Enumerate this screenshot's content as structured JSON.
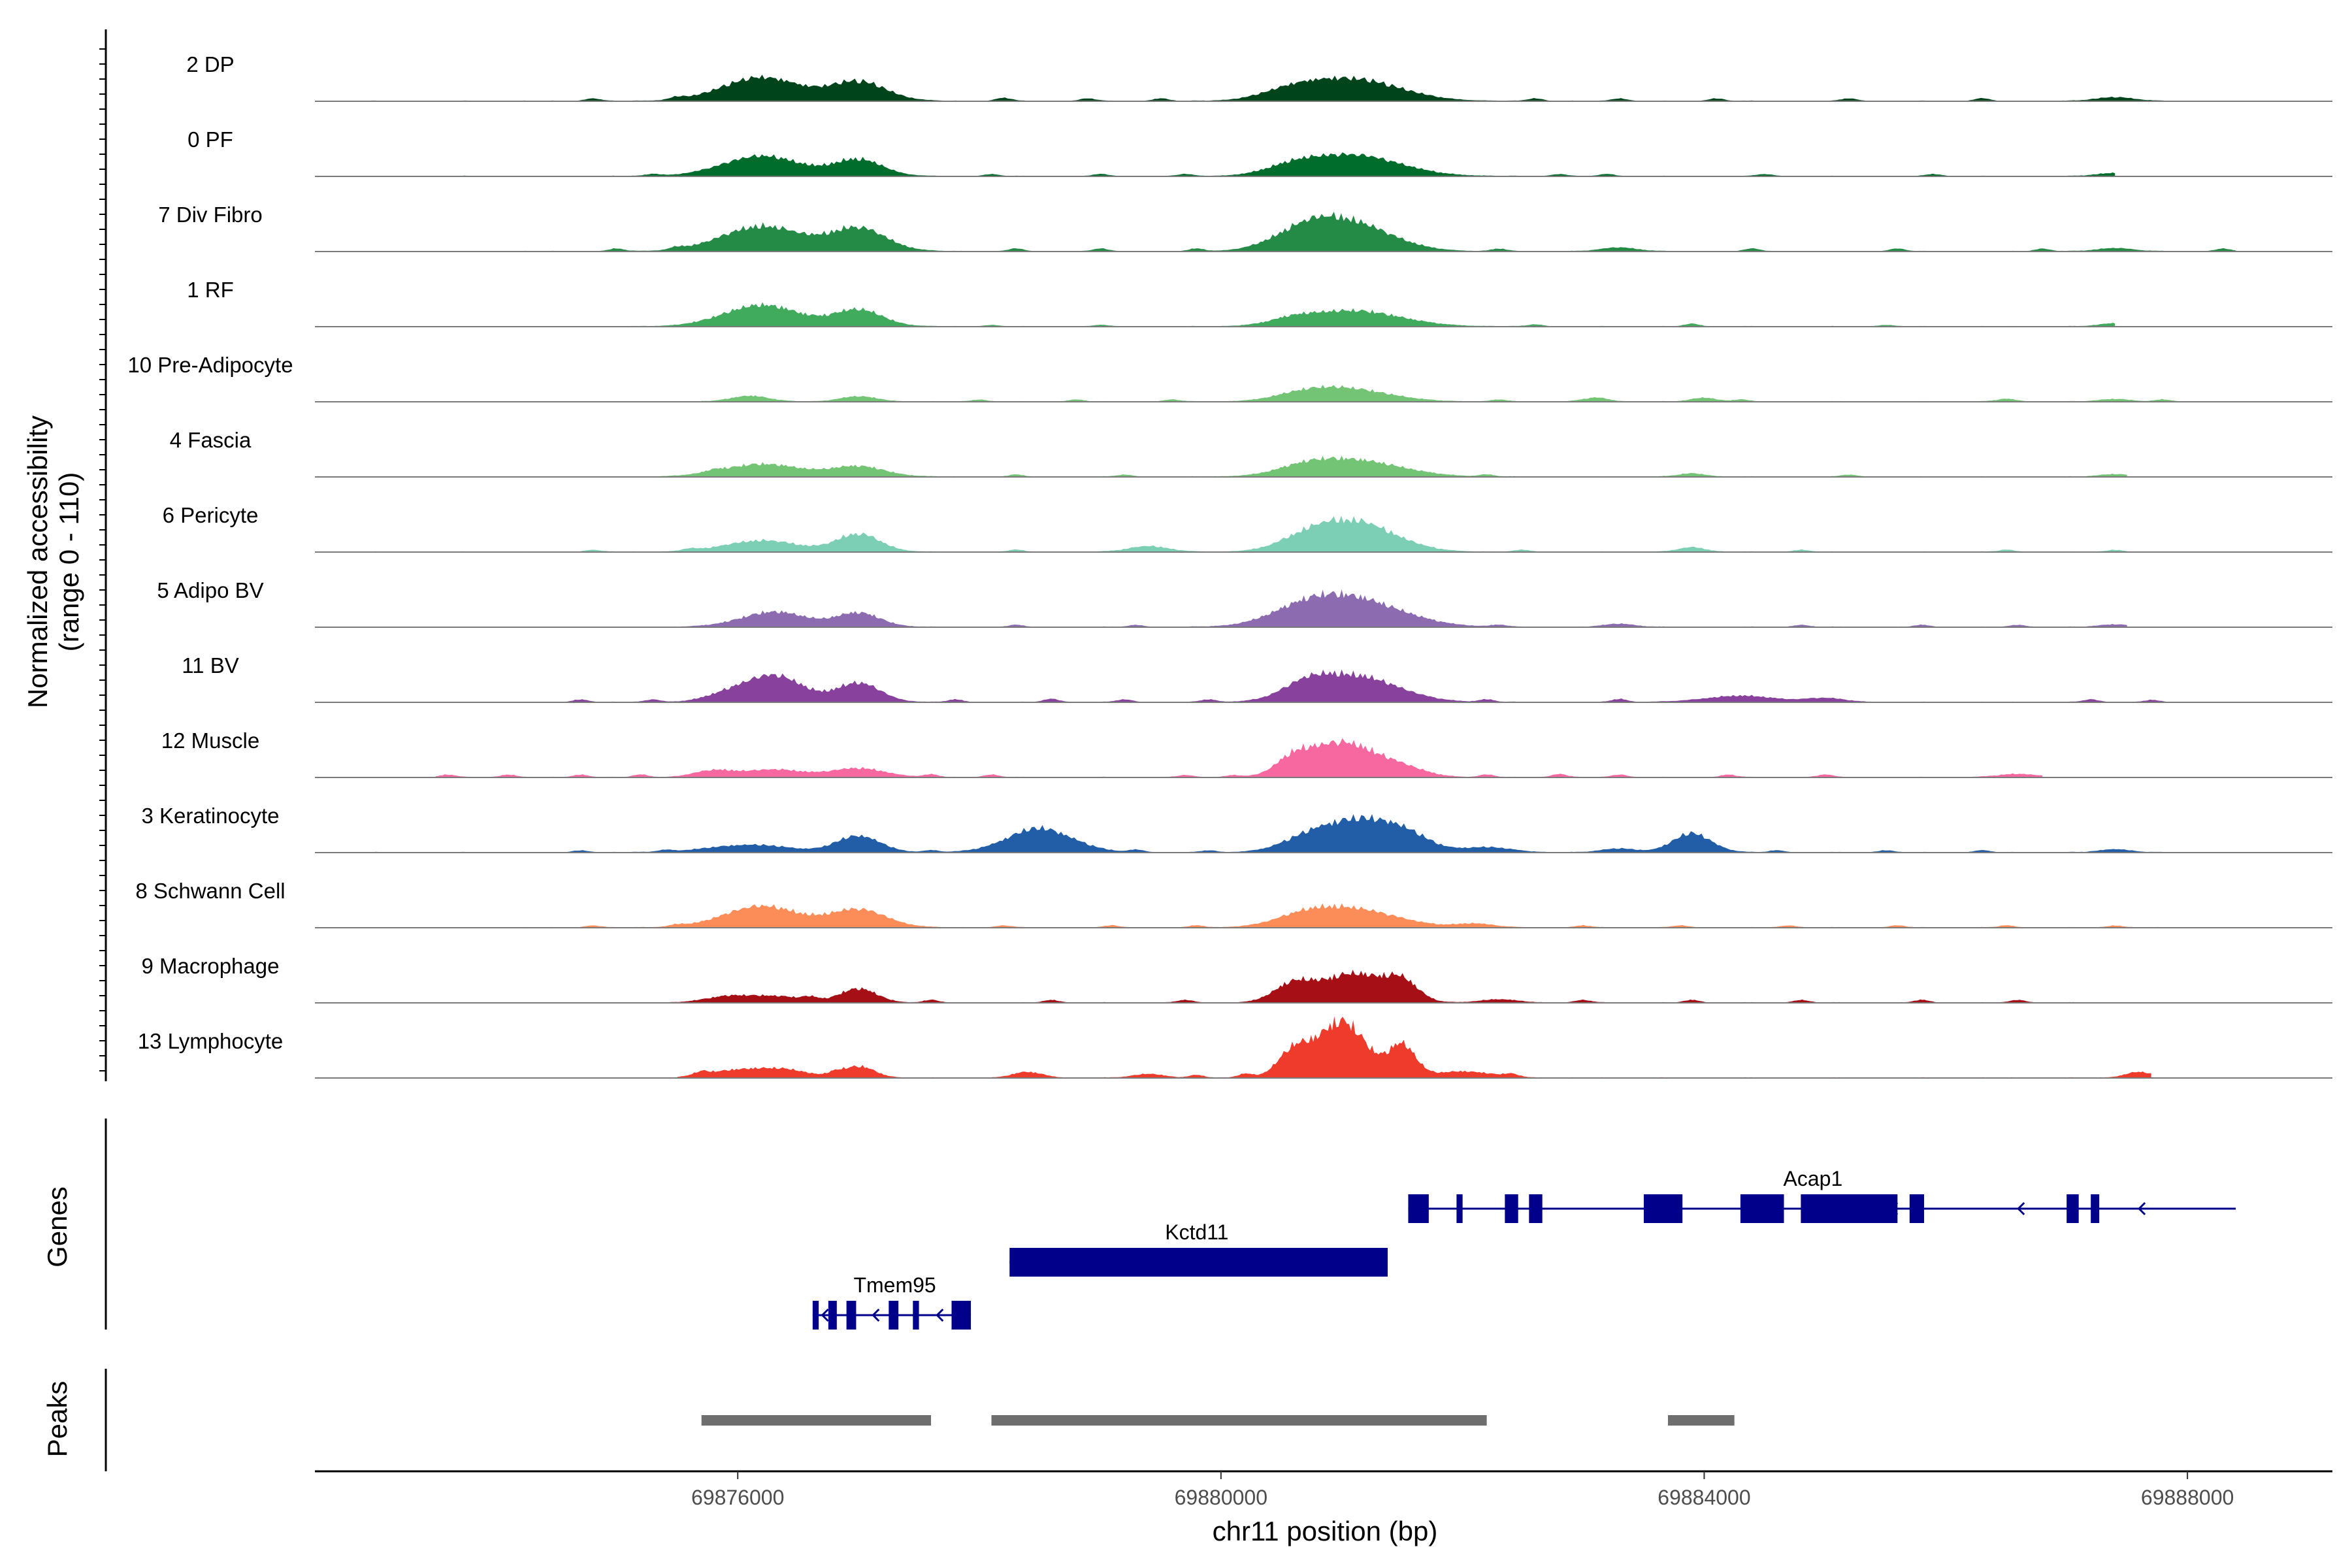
{
  "chart_data": {
    "type": "area",
    "title": "",
    "chromosome": "chr11",
    "xlabel": "chr11 position (bp)",
    "ylabel_line1": "Normalized accessibility",
    "ylabel_line2": "(range 0 - 110)",
    "y_range": [
      0,
      110
    ],
    "xlim": [
      69872500,
      69889200
    ],
    "x_ticks": [
      69876000,
      69880000,
      69884000,
      69888000
    ],
    "x_tick_labels": [
      "69876000",
      "69880000",
      "69884000",
      "69888000"
    ],
    "genes_label": "Genes",
    "peaks_label": "Peaks",
    "tracks": [
      {
        "name": "2 DP",
        "color": "#00441b",
        "start": 69872500,
        "end": 69888300,
        "peaks": [
          [
            69876200,
            38,
            320
          ],
          [
            69877000,
            30,
            230
          ],
          [
            69880600,
            14,
            250
          ],
          [
            69881100,
            34,
            380
          ],
          [
            69887400,
            6,
            150
          ]
        ],
        "minor": [
          [
            69874800,
            4
          ],
          [
            69875500,
            4
          ],
          [
            69878200,
            5
          ],
          [
            69878900,
            4
          ],
          [
            69879500,
            4
          ],
          [
            69882600,
            4
          ],
          [
            69883300,
            4
          ],
          [
            69884100,
            4
          ],
          [
            69885200,
            4
          ],
          [
            69886300,
            4
          ]
        ]
      },
      {
        "name": "0 PF",
        "color": "#006d2c",
        "start": 69873500,
        "end": 69887400,
        "peaks": [
          [
            69876200,
            32,
            320
          ],
          [
            69877000,
            26,
            200
          ],
          [
            69880600,
            12,
            220
          ],
          [
            69881100,
            33,
            380
          ],
          [
            69887400,
            5,
            140
          ]
        ],
        "minor": [
          [
            69875300,
            3
          ],
          [
            69878100,
            3
          ],
          [
            69879000,
            3
          ],
          [
            69879700,
            3
          ],
          [
            69882800,
            3
          ],
          [
            69883200,
            3
          ],
          [
            69884500,
            3
          ],
          [
            69885900,
            3
          ]
        ]
      },
      {
        "name": "7 Div Fibro",
        "color": "#238b45",
        "start": 69874200,
        "end": 69888400,
        "peaks": [
          [
            69876200,
            40,
            330
          ],
          [
            69877000,
            36,
            230
          ],
          [
            69880700,
            30,
            270
          ],
          [
            69881100,
            40,
            330
          ],
          [
            69883300,
            6,
            140
          ],
          [
            69887400,
            5,
            140
          ]
        ],
        "minor": [
          [
            69875000,
            4
          ],
          [
            69875500,
            4
          ],
          [
            69878300,
            4
          ],
          [
            69879000,
            4
          ],
          [
            69879800,
            4
          ],
          [
            69882300,
            4
          ],
          [
            69884400,
            4
          ],
          [
            69885600,
            4
          ],
          [
            69886800,
            4
          ],
          [
            69888300,
            4
          ]
        ]
      },
      {
        "name": "1 RF",
        "color": "#41ab5d",
        "start": 69875000,
        "end": 69887400,
        "peaks": [
          [
            69876200,
            34,
            310
          ],
          [
            69877000,
            26,
            200
          ],
          [
            69880600,
            8,
            180
          ],
          [
            69881100,
            25,
            380
          ],
          [
            69887400,
            5,
            120
          ]
        ],
        "minor": [
          [
            69878100,
            2
          ],
          [
            69879000,
            2
          ],
          [
            69882600,
            3
          ],
          [
            69883900,
            4
          ],
          [
            69885500,
            2
          ]
        ]
      },
      {
        "name": "10 Pre-Adipocyte",
        "color": "#74c476",
        "start": 69875700,
        "end": 69888200,
        "peaks": [
          [
            69876100,
            9,
            150
          ],
          [
            69877000,
            8,
            150
          ],
          [
            69880700,
            12,
            240
          ],
          [
            69881100,
            18,
            320
          ],
          [
            69883100,
            6,
            100
          ],
          [
            69884000,
            6,
            100
          ],
          [
            69886500,
            4,
            80
          ],
          [
            69887400,
            4,
            120
          ]
        ],
        "minor": [
          [
            69878000,
            3
          ],
          [
            69878800,
            3
          ],
          [
            69879600,
            3
          ],
          [
            69882300,
            3
          ],
          [
            69884300,
            3
          ],
          [
            69887800,
            3
          ]
        ]
      },
      {
        "name": "4 Fascia",
        "color": "#74c476",
        "start": 69875300,
        "end": 69887500,
        "peaks": [
          [
            69876200,
            20,
            320
          ],
          [
            69877000,
            16,
            220
          ],
          [
            69880700,
            10,
            220
          ],
          [
            69881100,
            26,
            380
          ],
          [
            69883900,
            5,
            110
          ],
          [
            69887400,
            4,
            120
          ]
        ],
        "minor": [
          [
            69875800,
            3
          ],
          [
            69878300,
            3
          ],
          [
            69879200,
            3
          ],
          [
            69882200,
            3
          ],
          [
            69885200,
            3
          ]
        ]
      },
      {
        "name": "6 Pericyte",
        "color": "#7ccfb4",
        "start": 69873000,
        "end": 69887500,
        "peaks": [
          [
            69876200,
            18,
            300
          ],
          [
            69877000,
            28,
            180
          ],
          [
            69879400,
            9,
            160
          ],
          [
            69880700,
            14,
            220
          ],
          [
            69881100,
            48,
            330
          ],
          [
            69883900,
            7,
            110
          ]
        ],
        "minor": [
          [
            69874800,
            3
          ],
          [
            69875600,
            3
          ],
          [
            69878300,
            3
          ],
          [
            69882500,
            3
          ],
          [
            69884800,
            3
          ],
          [
            69886500,
            3
          ],
          [
            69887400,
            3
          ]
        ]
      },
      {
        "name": "5 Adipo BV",
        "color": "#8c6bb1",
        "start": 69875300,
        "end": 69887500,
        "peaks": [
          [
            69876300,
            24,
            270
          ],
          [
            69877000,
            22,
            180
          ],
          [
            69880700,
            20,
            290
          ],
          [
            69881100,
            42,
            400
          ],
          [
            69883300,
            5,
            120
          ],
          [
            69887400,
            4,
            120
          ]
        ],
        "minor": [
          [
            69878300,
            3
          ],
          [
            69879300,
            3
          ],
          [
            69882300,
            3
          ],
          [
            69884800,
            3
          ],
          [
            69885800,
            3
          ],
          [
            69886600,
            3
          ]
        ]
      },
      {
        "name": "11 BV",
        "color": "#88419d",
        "start": 69874500,
        "end": 69888000,
        "peaks": [
          [
            69875900,
            10,
            180
          ],
          [
            69876300,
            42,
            240
          ],
          [
            69877000,
            30,
            180
          ],
          [
            69880700,
            18,
            190
          ],
          [
            69881100,
            42,
            350
          ],
          [
            69884300,
            10,
            280
          ],
          [
            69885000,
            6,
            160
          ]
        ],
        "minor": [
          [
            69874700,
            4
          ],
          [
            69875300,
            4
          ],
          [
            69877800,
            4
          ],
          [
            69878600,
            5
          ],
          [
            69879200,
            4
          ],
          [
            69879900,
            4
          ],
          [
            69882200,
            4
          ],
          [
            69883300,
            5
          ],
          [
            69887200,
            4
          ],
          [
            69887700,
            3
          ]
        ]
      },
      {
        "name": "12 Muscle",
        "color": "#f768a1",
        "start": 69873500,
        "end": 69886800,
        "peaks": [
          [
            69875800,
            10,
            160
          ],
          [
            69876300,
            12,
            250
          ],
          [
            69877000,
            14,
            220
          ],
          [
            69880600,
            22,
            140
          ],
          [
            69881000,
            55,
            280
          ],
          [
            69881500,
            12,
            200
          ],
          [
            69886600,
            5,
            160
          ]
        ],
        "minor": [
          [
            69873600,
            4
          ],
          [
            69874100,
            4
          ],
          [
            69874700,
            4
          ],
          [
            69875200,
            4
          ],
          [
            69877600,
            4
          ],
          [
            69878100,
            4
          ],
          [
            69879700,
            3
          ],
          [
            69880100,
            3
          ],
          [
            69882200,
            4
          ],
          [
            69882800,
            5
          ],
          [
            69883300,
            4
          ],
          [
            69884200,
            4
          ],
          [
            69885000,
            4
          ]
        ]
      },
      {
        "name": "3 Keratinocyte",
        "color": "#225ea8",
        "start": 69873000,
        "end": 69888400,
        "peaks": [
          [
            69876100,
            12,
            330
          ],
          [
            69877000,
            26,
            180
          ],
          [
            69878500,
            38,
            270
          ],
          [
            69880700,
            14,
            220
          ],
          [
            69881100,
            46,
            300
          ],
          [
            69881500,
            24,
            220
          ],
          [
            69883900,
            30,
            160
          ],
          [
            69882200,
            8,
            200
          ],
          [
            69883300,
            6,
            140
          ],
          [
            69887400,
            5,
            120
          ]
        ],
        "minor": [
          [
            69874700,
            3
          ],
          [
            69875400,
            3
          ],
          [
            69877600,
            3
          ],
          [
            69879300,
            4
          ],
          [
            69879900,
            3
          ],
          [
            69884600,
            3
          ],
          [
            69885500,
            3
          ],
          [
            69886300,
            3
          ]
        ]
      },
      {
        "name": "8 Schwann Cell",
        "color": "#fc8d59",
        "start": 69874000,
        "end": 69888000,
        "peaks": [
          [
            69876200,
            34,
            310
          ],
          [
            69877000,
            28,
            230
          ],
          [
            69880700,
            14,
            240
          ],
          [
            69881100,
            28,
            360
          ],
          [
            69882100,
            6,
            150
          ]
        ],
        "minor": [
          [
            69874800,
            3
          ],
          [
            69875500,
            3
          ],
          [
            69878200,
            3
          ],
          [
            69879100,
            3
          ],
          [
            69879800,
            3
          ],
          [
            69883000,
            3
          ],
          [
            69883800,
            3
          ],
          [
            69884700,
            3
          ],
          [
            69885600,
            3
          ],
          [
            69886500,
            3
          ],
          [
            69887400,
            3
          ]
        ]
      },
      {
        "name": "9 Macrophage",
        "color": "#a50f15",
        "start": 69875400,
        "end": 69887400,
        "peaks": [
          [
            69875900,
            8,
            180
          ],
          [
            69876300,
            10,
            250
          ],
          [
            69877000,
            22,
            150
          ],
          [
            69880600,
            28,
            160
          ],
          [
            69881100,
            46,
            260
          ],
          [
            69881500,
            28,
            130
          ],
          [
            69882300,
            5,
            150
          ]
        ],
        "minor": [
          [
            69876600,
            5
          ],
          [
            69877600,
            4
          ],
          [
            69878600,
            4
          ],
          [
            69879700,
            4
          ],
          [
            69883000,
            4
          ],
          [
            69883900,
            4
          ],
          [
            69884800,
            4
          ],
          [
            69885800,
            4
          ],
          [
            69886600,
            4
          ]
        ]
      },
      {
        "name": "13 Lymphocyte",
        "color": "#ef3b2c",
        "start": 69875500,
        "end": 69887700,
        "peaks": [
          [
            69876000,
            12,
            240
          ],
          [
            69876400,
            11,
            200
          ],
          [
            69877000,
            18,
            130
          ],
          [
            69878400,
            9,
            120
          ],
          [
            69879400,
            6,
            120
          ],
          [
            69880600,
            40,
            130
          ],
          [
            69881000,
            90,
            200
          ],
          [
            69881500,
            50,
            110
          ],
          [
            69882000,
            10,
            240
          ],
          [
            69887600,
            9,
            110
          ]
        ],
        "minor": [
          [
            69875700,
            5
          ],
          [
            69876800,
            5
          ],
          [
            69879800,
            4
          ],
          [
            69880200,
            6
          ],
          [
            69882400,
            4
          ]
        ]
      }
    ],
    "genes": [
      {
        "name": "Acap1",
        "row": 0,
        "strand": "-",
        "start": 69881550,
        "end": 69888400,
        "label_pos": 69884900,
        "exons": [
          [
            69881550,
            69881720
          ],
          [
            69881950,
            69882000
          ],
          [
            69882350,
            69882460
          ],
          [
            69882550,
            69882660
          ],
          [
            69883500,
            69883820
          ],
          [
            69884300,
            69884660
          ],
          [
            69884800,
            69885600
          ],
          [
            69885700,
            69885820
          ],
          [
            69887000,
            69887100
          ],
          [
            69887200,
            69887270
          ]
        ],
        "arrows": [
          69885550,
          69886600,
          69887600
        ]
      },
      {
        "name": "Kctd11",
        "row": 1,
        "strand": "+",
        "start": 69878250,
        "end": 69881380,
        "label_pos": 69879800,
        "exons": [
          [
            69878250,
            69881380
          ]
        ],
        "arrows": []
      },
      {
        "name": "Tmem95",
        "row": 2,
        "strand": "-",
        "start": 69876620,
        "end": 69877930,
        "label_pos": 69877300,
        "exons": [
          [
            69876620,
            69876670
          ],
          [
            69876750,
            69876820
          ],
          [
            69876900,
            69876980
          ],
          [
            69877250,
            69877330
          ],
          [
            69877450,
            69877500
          ],
          [
            69877770,
            69877930
          ]
        ],
        "arrows": [
          69876700,
          69877120,
          69877650
        ]
      }
    ],
    "peak_regions": [
      [
        69875700,
        69877600
      ],
      [
        69878100,
        69882200
      ],
      [
        69883700,
        69884250
      ]
    ]
  }
}
